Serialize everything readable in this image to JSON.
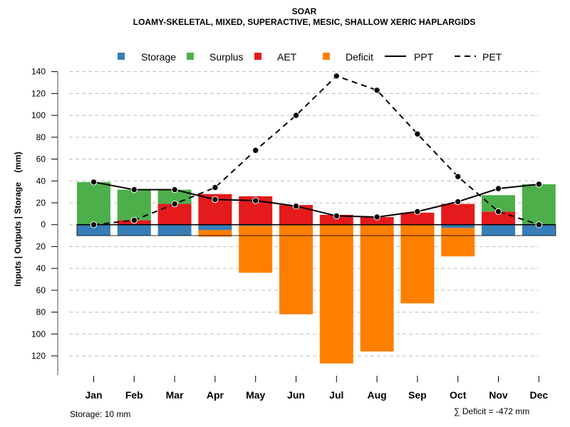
{
  "chart_data": {
    "type": "bar",
    "title": "SOAR",
    "subtitle": "LOAMY-SKELETAL, MIXED, SUPERACTIVE, MESIC, SHALLOW XERIC HAPLARGIDS",
    "xlabel": "",
    "ylabel": "Inputs | Outputs | Storage    (mm)",
    "categories": [
      "Jan",
      "Feb",
      "Mar",
      "Apr",
      "May",
      "Jun",
      "Jul",
      "Aug",
      "Sep",
      "Oct",
      "Nov",
      "Dec"
    ],
    "ylim": [
      -135,
      140
    ],
    "yticks": [
      140,
      120,
      100,
      80,
      60,
      40,
      20,
      0,
      -20,
      -40,
      -60,
      -80,
      -100,
      -120
    ],
    "ytick_labels": [
      "140",
      "120",
      "100",
      "80",
      "60",
      "40",
      "20",
      "0",
      "20",
      "40",
      "60",
      "80",
      "100",
      "120"
    ],
    "grid": true,
    "legend": {
      "placement": "top",
      "entries": [
        {
          "label": "Storage",
          "kind": "square",
          "color": "#377EB8"
        },
        {
          "label": "Surplus",
          "kind": "square",
          "color": "#4DAF4A"
        },
        {
          "label": "AET",
          "kind": "square",
          "color": "#E41A1C"
        },
        {
          "label": "Deficit",
          "kind": "square",
          "color": "#FF7F00"
        },
        {
          "label": "PPT",
          "kind": "solid-line",
          "color": "#000000"
        },
        {
          "label": "PET",
          "kind": "dashed-line",
          "color": "#000000"
        }
      ]
    },
    "series": [
      {
        "name": "AET",
        "type": "bar",
        "direction": "up",
        "color": "#E41A1C",
        "values": [
          0,
          4,
          19,
          28,
          26,
          18,
          9,
          7,
          11,
          19,
          12,
          0
        ]
      },
      {
        "name": "Surplus",
        "type": "bar",
        "direction": "up",
        "stacked_on": "AET",
        "color": "#4DAF4A",
        "values": [
          39,
          28,
          13,
          0,
          0,
          0,
          0,
          0,
          0,
          0,
          15,
          37
        ]
      },
      {
        "name": "Storage",
        "type": "bar",
        "direction": "down",
        "color": "#377EB8",
        "values": [
          10,
          10,
          10,
          5,
          1,
          0,
          0,
          0,
          0,
          3,
          10,
          10
        ]
      },
      {
        "name": "Deficit",
        "type": "bar",
        "direction": "down",
        "stacked_on": "Storage",
        "color": "#FF7F00",
        "values": [
          0,
          0,
          0,
          6,
          43,
          82,
          127,
          116,
          72,
          26,
          0,
          0
        ]
      },
      {
        "name": "PPT",
        "type": "line",
        "style": "solid",
        "color": "#000000",
        "values": [
          39,
          32,
          32,
          23,
          22,
          17,
          8,
          7,
          12,
          21,
          33,
          37
        ]
      },
      {
        "name": "PET",
        "type": "line",
        "style": "dashed",
        "color": "#000000",
        "values": [
          0,
          4,
          19,
          34,
          68,
          100,
          136,
          123,
          83,
          44,
          12,
          0
        ]
      }
    ],
    "storage_capacity": 10,
    "annotations": {
      "storage_note": "Storage: 10 mm",
      "deficit_sum": "∑ Deficit = -472 mm"
    }
  }
}
